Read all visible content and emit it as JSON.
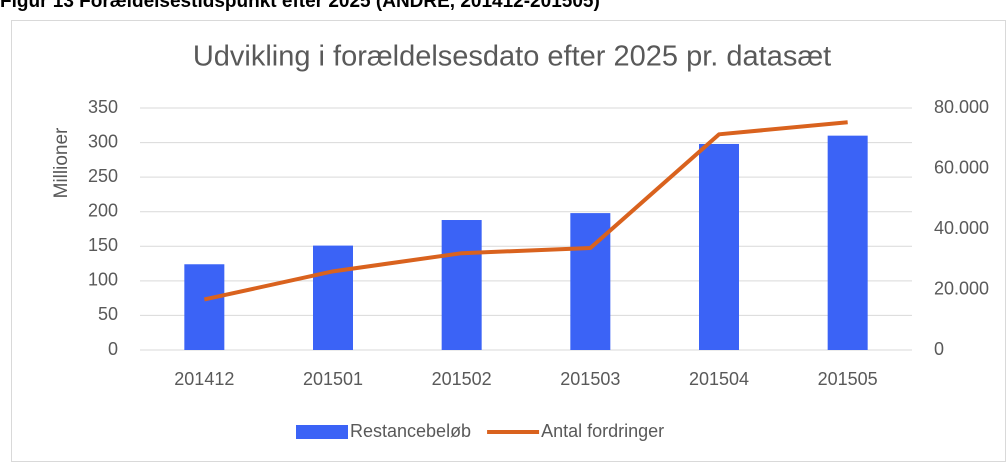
{
  "figure_caption": "Figur 13 Forældelsestidspunkt efter 2025 (ANDRE, 201412-201505)",
  "chart_data": {
    "type": "bar-line",
    "title": "Udvikling i forældelsesdato efter 2025 pr. datasæt",
    "y_label": "Millioner",
    "categories": [
      "201412",
      "201501",
      "201502",
      "201503",
      "201504",
      "201505"
    ],
    "series": [
      {
        "name": "Restancebeløb",
        "color": "#3b63f6",
        "type": "bar",
        "values": [
          124,
          151,
          188,
          198,
          298,
          310
        ]
      },
      {
        "name": "Antal fordringer",
        "color": "#d9621e",
        "type": "line",
        "axis": "y2",
        "values": [
          16700,
          26000,
          32000,
          33700,
          71300,
          75300
        ]
      }
    ],
    "ylim": [
      0,
      350
    ],
    "yticks": [
      0,
      50,
      100,
      150,
      200,
      250,
      300,
      350
    ],
    "y2lim": [
      0,
      80000
    ],
    "y2ticks": [
      0,
      {
        "value": 20000,
        "label": "20.000"
      },
      {
        "value": 40000,
        "label": "40.000"
      },
      {
        "value": 60000,
        "label": "60.000"
      },
      {
        "value": 80000,
        "label": "80.000"
      }
    ],
    "grid": true,
    "legend": "bottom"
  }
}
